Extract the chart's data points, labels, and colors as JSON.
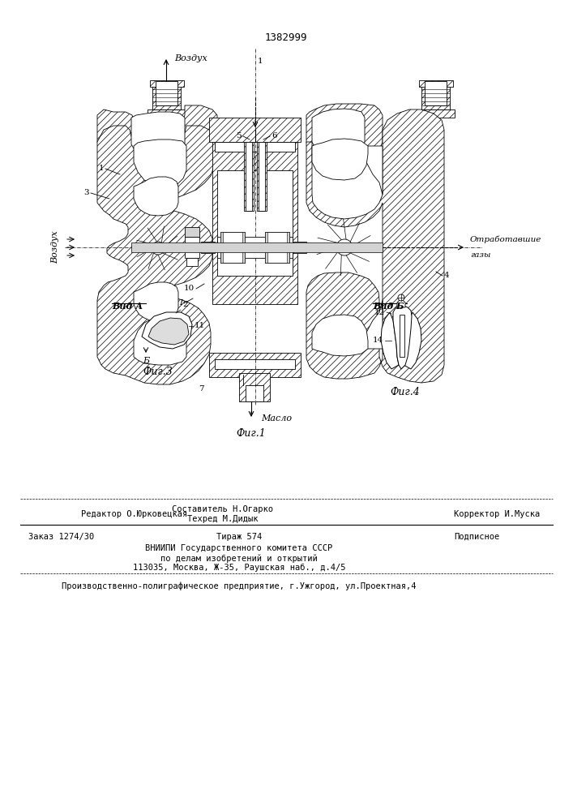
{
  "title": "1382999",
  "background_color": "#ffffff",
  "fig_width": 7.07,
  "fig_height": 10.0,
  "fig1_caption": "Фиг.1",
  "fig3_caption": "Фиг.3",
  "fig4_caption": "Фиг.4",
  "vid_a_label": "Вид А",
  "vid_b_label": "Вид Б",
  "vozduh_top": "Воздух",
  "vozduh_left": "Воздух",
  "maslo_label": "Масло",
  "gazy_label1": "Отработавшие",
  "gazy_label2": "газы",
  "footer_line1": "Составитель Н.Огарко",
  "footer_line2": "Техред М.Дидык",
  "footer_editor": "Редактор О.Юрковецкая",
  "footer_corrector": "Корректор И.Муска",
  "footer_zakaz": "Заказ 1274/30",
  "footer_tirazh": "Тираж 574",
  "footer_podpisnoe": "Подписное",
  "footer_vnipi": "ВНИИПИ Государственного комитета СССР",
  "footer_po_delam": "по делам изобретений и открытий",
  "footer_address": "113035, Москва, Ж-35, Раушская наб., д.4/5",
  "footer_proizv": "Производственно-полиграфическое предприятие, г.Ужгород, ул.Проектная,4",
  "hatch_pattern": "////",
  "line_color": "#000000"
}
